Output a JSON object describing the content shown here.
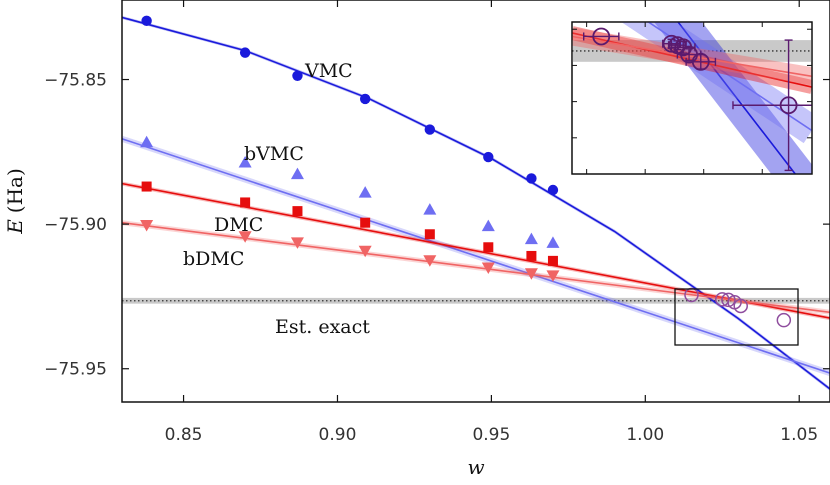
{
  "chart_data": {
    "type": "scatter",
    "xlabel_var": "w",
    "ylabel_var": "E",
    "ylabel_unit": "(Ha)",
    "xlim": [
      0.83,
      1.06
    ],
    "ylim": [
      -75.9615,
      -75.8225
    ],
    "xticks": [
      0.85,
      0.9,
      0.95,
      1.0,
      1.05
    ],
    "xtick_labels": [
      "0.85",
      "0.90",
      "0.95",
      "1.00",
      "1.05"
    ],
    "yticks": [
      -75.85,
      -75.9,
      -75.95
    ],
    "ytick_labels": [
      "−75.85",
      "−75.90",
      "−75.95"
    ],
    "reference": {
      "label": "Est. exact",
      "value": -75.9265,
      "band": [
        -75.9275,
        -75.9255
      ]
    },
    "series": [
      {
        "name": "VMC",
        "marker": "circle",
        "color": "#1a1adb",
        "x": [
          0.838,
          0.87,
          0.887,
          0.909,
          0.93,
          0.949,
          0.963,
          0.97
        ],
        "y": [
          -75.8297,
          -75.8407,
          -75.8487,
          -75.8567,
          -75.8673,
          -75.8768,
          -75.8842,
          -75.8882
        ],
        "fit": {
          "x": [
            0.83,
            0.87,
            0.91,
            0.95,
            0.99,
            1.03,
            1.06
          ],
          "y": [
            -75.8285,
            -75.84,
            -75.8565,
            -75.8773,
            -75.9025,
            -75.9325,
            -75.957
          ]
        }
      },
      {
        "name": "bVMC",
        "marker": "triangle-up",
        "color": "#6e6ef2",
        "x": [
          0.838,
          0.87,
          0.887,
          0.909,
          0.93,
          0.949,
          0.963,
          0.97
        ],
        "y": [
          -75.8717,
          -75.8787,
          -75.8827,
          -75.8891,
          -75.895,
          -75.9007,
          -75.9052,
          -75.9065
        ],
        "fit": {
          "x": [
            0.83,
            1.06
          ],
          "y": [
            -75.8705,
            -75.9515
          ]
        }
      },
      {
        "name": "DMC",
        "marker": "square",
        "color": "#e60d0d",
        "x": [
          0.838,
          0.87,
          0.887,
          0.909,
          0.93,
          0.949,
          0.963,
          0.97
        ],
        "y": [
          -75.887,
          -75.8925,
          -75.8955,
          -75.8995,
          -75.9035,
          -75.908,
          -75.911,
          -75.9127
        ],
        "fit": {
          "x": [
            0.83,
            1.06
          ],
          "y": [
            -75.886,
            -75.9325
          ]
        }
      },
      {
        "name": "bDMC",
        "marker": "triangle-down",
        "color": "#f06464",
        "x": [
          0.838,
          0.87,
          0.887,
          0.909,
          0.93,
          0.949,
          0.963,
          0.97
        ],
        "y": [
          -75.9003,
          -75.9042,
          -75.9063,
          -75.9092,
          -75.9125,
          -75.915,
          -75.917,
          -75.9177
        ],
        "fit": {
          "x": [
            0.83,
            1.06
          ],
          "y": [
            -75.8995,
            -75.9305
          ]
        }
      },
      {
        "name": "",
        "marker": "open-circle",
        "color": "#8f4d9e",
        "x": [
          1.015,
          1.025,
          1.027,
          1.029,
          1.031,
          1.045
        ],
        "y": [
          -75.9245,
          -75.926,
          -75.9262,
          -75.927,
          -75.9283,
          -75.9332
        ]
      }
    ],
    "inset": {
      "xlim": [
        1.0075,
        1.0485
      ],
      "ylim": [
        -75.94,
        -75.919
      ],
      "points": [
        {
          "x": 1.0125,
          "y": -75.921,
          "xerr": 0.003,
          "yerr": 0.0
        },
        {
          "x": 1.0245,
          "y": -75.922,
          "xerr": 0.0015,
          "yerr": 0.0006
        },
        {
          "x": 1.0255,
          "y": -75.9222,
          "xerr": 0.0015,
          "yerr": 0.0006
        },
        {
          "x": 1.0265,
          "y": -75.9225,
          "xerr": 0.002,
          "yerr": 0.0008
        },
        {
          "x": 1.0275,
          "y": -75.9235,
          "xerr": 0.002,
          "yerr": 0.0008
        },
        {
          "x": 1.0295,
          "y": -75.9245,
          "xerr": 0.0025,
          "yerr": 0.001
        },
        {
          "x": 1.0445,
          "y": -75.9305,
          "xerr": 0.0095,
          "yerr": 0.009
        }
      ]
    }
  }
}
